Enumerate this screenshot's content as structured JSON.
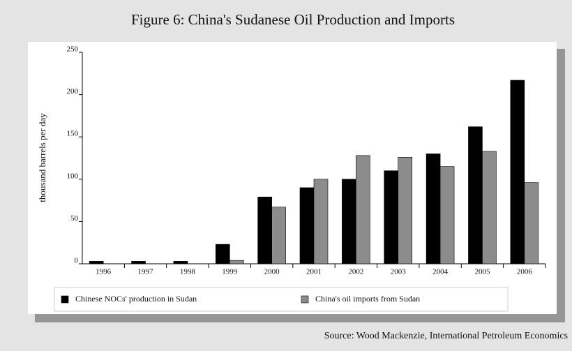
{
  "chart_data": {
    "type": "bar",
    "title": "Figure 6: China's Sudanese Oil Production and Imports",
    "ylabel": "thousand barrels per day",
    "source": "Source: Wood Mackenzie, International Petroleum Economics",
    "categories": [
      "1996",
      "1997",
      "1998",
      "1999",
      "2000",
      "2001",
      "2002",
      "2003",
      "2004",
      "2005",
      "2006"
    ],
    "series": [
      {
        "name": "Chinese NOCs' production in Sudan",
        "color": "#000000",
        "values": [
          3,
          3,
          3,
          23,
          79,
          90,
          100,
          110,
          130,
          162,
          217
        ]
      },
      {
        "name": "China's oil imports from Sudan",
        "color": "#8c8c8c",
        "values": [
          0,
          0,
          0,
          4,
          67,
          100,
          128,
          126,
          115,
          133,
          96
        ]
      }
    ],
    "ylim": [
      0,
      250
    ],
    "yticks": [
      0,
      50,
      100,
      150,
      200,
      250
    ],
    "legend": "bottom"
  }
}
